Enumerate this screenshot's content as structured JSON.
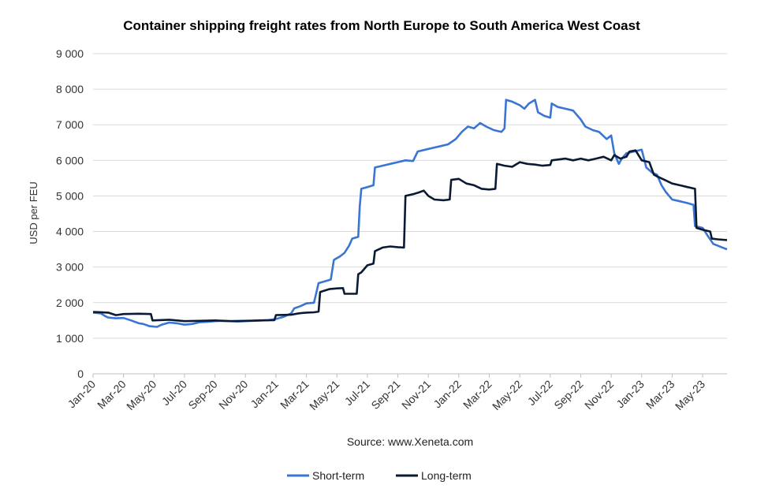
{
  "chart_data": {
    "type": "line",
    "title": "Container shipping freight rates from North Europe to South America West Coast",
    "ylabel": "USD per FEU",
    "xlabel": "",
    "source": "Source: www.Xeneta.com",
    "ylim": [
      0,
      9000
    ],
    "y_ticks": [
      "0",
      "1 000",
      "2 000",
      "3 000",
      "4 000",
      "5 000",
      "6 000",
      "7 000",
      "8 000",
      "9 000"
    ],
    "y_tick_values": [
      0,
      1000,
      2000,
      3000,
      4000,
      5000,
      6000,
      7000,
      8000,
      9000
    ],
    "x_ticks": [
      "Jan-20",
      "Mar-20",
      "May-20",
      "Jul-20",
      "Sep-20",
      "Nov-20",
      "Jan-21",
      "Mar-21",
      "May-21",
      "Jul-21",
      "Sep-21",
      "Nov-21",
      "Jan-22",
      "Mar-22",
      "May-22",
      "Jul-22",
      "Sep-22",
      "Nov-22",
      "Jan-23",
      "Mar-23",
      "May-23"
    ],
    "x_tick_months": [
      0,
      2,
      4,
      6,
      8,
      10,
      12,
      14,
      16,
      18,
      20,
      22,
      24,
      26,
      28,
      30,
      32,
      34,
      36,
      38,
      40
    ],
    "xlim_months": [
      0,
      41.6
    ],
    "legend_position": "bottom",
    "grid": true,
    "series": [
      {
        "name": "Short-term",
        "color": "#3a75d4",
        "points": [
          [
            0.0,
            1720
          ],
          [
            0.5,
            1700
          ],
          [
            0.8,
            1620
          ],
          [
            1.0,
            1580
          ],
          [
            1.5,
            1560
          ],
          [
            2.0,
            1570
          ],
          [
            2.5,
            1500
          ],
          [
            3.0,
            1420
          ],
          [
            3.3,
            1400
          ],
          [
            3.7,
            1340
          ],
          [
            4.2,
            1320
          ],
          [
            4.5,
            1380
          ],
          [
            5.0,
            1440
          ],
          [
            5.5,
            1420
          ],
          [
            6.0,
            1380
          ],
          [
            6.5,
            1400
          ],
          [
            7.0,
            1450
          ],
          [
            7.5,
            1460
          ],
          [
            8.0,
            1480
          ],
          [
            8.5,
            1490
          ],
          [
            9.0,
            1480
          ],
          [
            9.5,
            1470
          ],
          [
            10.0,
            1480
          ],
          [
            10.5,
            1490
          ],
          [
            11.0,
            1500
          ],
          [
            11.5,
            1510
          ],
          [
            12.0,
            1540
          ],
          [
            12.5,
            1600
          ],
          [
            13.0,
            1700
          ],
          [
            13.2,
            1840
          ],
          [
            13.6,
            1900
          ],
          [
            14.0,
            1980
          ],
          [
            14.5,
            2000
          ],
          [
            14.8,
            2550
          ],
          [
            15.2,
            2600
          ],
          [
            15.6,
            2650
          ],
          [
            15.8,
            3200
          ],
          [
            16.2,
            3300
          ],
          [
            16.5,
            3400
          ],
          [
            16.8,
            3600
          ],
          [
            17.0,
            3800
          ],
          [
            17.4,
            3850
          ],
          [
            17.5,
            4700
          ],
          [
            17.6,
            5200
          ],
          [
            18.0,
            5250
          ],
          [
            18.4,
            5300
          ],
          [
            18.5,
            5800
          ],
          [
            19.0,
            5850
          ],
          [
            19.5,
            5900
          ],
          [
            20.0,
            5950
          ],
          [
            20.5,
            6000
          ],
          [
            21.0,
            5980
          ],
          [
            21.3,
            6250
          ],
          [
            21.8,
            6300
          ],
          [
            22.3,
            6350
          ],
          [
            22.8,
            6400
          ],
          [
            23.3,
            6450
          ],
          [
            23.8,
            6600
          ],
          [
            24.2,
            6800
          ],
          [
            24.6,
            6950
          ],
          [
            25.0,
            6900
          ],
          [
            25.4,
            7050
          ],
          [
            25.8,
            6950
          ],
          [
            26.3,
            6850
          ],
          [
            26.8,
            6800
          ],
          [
            27.0,
            6900
          ],
          [
            27.1,
            7700
          ],
          [
            27.5,
            7650
          ],
          [
            28.0,
            7550
          ],
          [
            28.3,
            7450
          ],
          [
            28.6,
            7600
          ],
          [
            29.0,
            7700
          ],
          [
            29.2,
            7350
          ],
          [
            29.6,
            7250
          ],
          [
            30.0,
            7200
          ],
          [
            30.1,
            7600
          ],
          [
            30.5,
            7500
          ],
          [
            31.0,
            7450
          ],
          [
            31.5,
            7400
          ],
          [
            32.0,
            7150
          ],
          [
            32.3,
            6950
          ],
          [
            32.8,
            6850
          ],
          [
            33.2,
            6800
          ],
          [
            33.7,
            6600
          ],
          [
            34.0,
            6700
          ],
          [
            34.2,
            6200
          ],
          [
            34.5,
            5900
          ],
          [
            34.7,
            6050
          ],
          [
            35.0,
            6200
          ],
          [
            35.5,
            6250
          ],
          [
            36.0,
            6300
          ],
          [
            36.3,
            5800
          ],
          [
            36.7,
            5650
          ],
          [
            37.0,
            5600
          ],
          [
            37.3,
            5300
          ],
          [
            37.6,
            5100
          ],
          [
            38.0,
            4900
          ],
          [
            38.5,
            4850
          ],
          [
            39.0,
            4800
          ],
          [
            39.4,
            4750
          ],
          [
            39.5,
            4150
          ],
          [
            40.0,
            4100
          ],
          [
            40.3,
            3900
          ],
          [
            40.7,
            3650
          ],
          [
            41.0,
            3600
          ],
          [
            41.3,
            3550
          ],
          [
            41.6,
            3500
          ]
        ]
      },
      {
        "name": "Long-term",
        "color": "#0b1a33",
        "points": [
          [
            0.0,
            1740
          ],
          [
            1.0,
            1720
          ],
          [
            1.5,
            1650
          ],
          [
            2.0,
            1680
          ],
          [
            3.0,
            1690
          ],
          [
            3.8,
            1680
          ],
          [
            3.9,
            1500
          ],
          [
            5.0,
            1520
          ],
          [
            6.0,
            1480
          ],
          [
            7.0,
            1490
          ],
          [
            8.0,
            1500
          ],
          [
            9.0,
            1480
          ],
          [
            10.0,
            1490
          ],
          [
            11.0,
            1500
          ],
          [
            11.9,
            1510
          ],
          [
            12.0,
            1650
          ],
          [
            13.0,
            1660
          ],
          [
            13.5,
            1700
          ],
          [
            14.0,
            1720
          ],
          [
            14.5,
            1730
          ],
          [
            14.8,
            1750
          ],
          [
            14.9,
            2300
          ],
          [
            15.5,
            2380
          ],
          [
            16.0,
            2400
          ],
          [
            16.4,
            2410
          ],
          [
            16.5,
            2250
          ],
          [
            17.3,
            2250
          ],
          [
            17.4,
            2800
          ],
          [
            17.6,
            2850
          ],
          [
            18.0,
            3050
          ],
          [
            18.4,
            3100
          ],
          [
            18.5,
            3450
          ],
          [
            19.0,
            3550
          ],
          [
            19.5,
            3580
          ],
          [
            20.0,
            3560
          ],
          [
            20.4,
            3550
          ],
          [
            20.5,
            5000
          ],
          [
            21.0,
            5050
          ],
          [
            21.4,
            5100
          ],
          [
            21.7,
            5150
          ],
          [
            22.0,
            5000
          ],
          [
            22.4,
            4900
          ],
          [
            23.0,
            4880
          ],
          [
            23.4,
            4900
          ],
          [
            23.5,
            5450
          ],
          [
            24.0,
            5480
          ],
          [
            24.5,
            5350
          ],
          [
            25.0,
            5300
          ],
          [
            25.5,
            5200
          ],
          [
            26.0,
            5180
          ],
          [
            26.4,
            5200
          ],
          [
            26.5,
            5900
          ],
          [
            27.0,
            5850
          ],
          [
            27.5,
            5820
          ],
          [
            28.0,
            5950
          ],
          [
            28.5,
            5900
          ],
          [
            29.0,
            5880
          ],
          [
            29.5,
            5850
          ],
          [
            30.0,
            5870
          ],
          [
            30.1,
            6000
          ],
          [
            31.0,
            6050
          ],
          [
            31.5,
            6000
          ],
          [
            32.0,
            6050
          ],
          [
            32.5,
            6000
          ],
          [
            33.0,
            6050
          ],
          [
            33.5,
            6100
          ],
          [
            34.0,
            6000
          ],
          [
            34.2,
            6150
          ],
          [
            34.6,
            6050
          ],
          [
            35.0,
            6100
          ],
          [
            35.2,
            6250
          ],
          [
            35.6,
            6280
          ],
          [
            36.0,
            6000
          ],
          [
            36.5,
            5950
          ],
          [
            36.8,
            5600
          ],
          [
            37.0,
            5550
          ],
          [
            37.5,
            5450
          ],
          [
            38.0,
            5350
          ],
          [
            38.5,
            5300
          ],
          [
            39.0,
            5250
          ],
          [
            39.5,
            5200
          ],
          [
            39.6,
            4100
          ],
          [
            40.0,
            4050
          ],
          [
            40.5,
            4000
          ],
          [
            40.6,
            3800
          ],
          [
            41.0,
            3780
          ],
          [
            41.6,
            3760
          ]
        ]
      }
    ]
  }
}
